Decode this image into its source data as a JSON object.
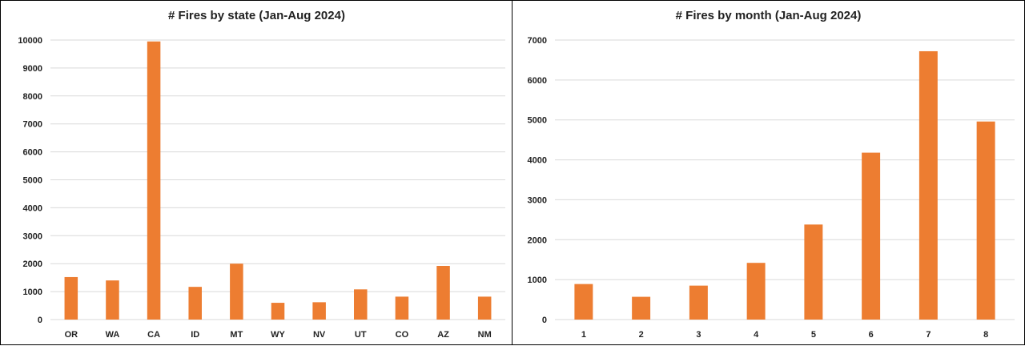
{
  "bar_color": "#ED7D31",
  "grid_color": "#D9D9D9",
  "chart_data": [
    {
      "type": "bar",
      "title": "# Fires by state (Jan-Aug 2024)",
      "categories": [
        "OR",
        "WA",
        "CA",
        "ID",
        "MT",
        "WY",
        "NV",
        "UT",
        "CO",
        "AZ",
        "NM"
      ],
      "values": [
        1520,
        1400,
        9950,
        1170,
        2000,
        600,
        620,
        1080,
        820,
        1920,
        820
      ],
      "ylim": [
        0,
        10000
      ],
      "yticks": [
        0,
        1000,
        2000,
        3000,
        4000,
        5000,
        6000,
        7000,
        8000,
        9000,
        10000
      ],
      "grid": true,
      "xlabel": "",
      "ylabel": ""
    },
    {
      "type": "bar",
      "title": "# Fires by month (Jan-Aug 2024)",
      "categories": [
        "1",
        "2",
        "3",
        "4",
        "5",
        "6",
        "7",
        "8"
      ],
      "values": [
        890,
        570,
        850,
        1420,
        2380,
        4180,
        6720,
        4960
      ],
      "ylim": [
        0,
        7000
      ],
      "yticks": [
        0,
        1000,
        2000,
        3000,
        4000,
        5000,
        6000,
        7000
      ],
      "grid": true,
      "xlabel": "",
      "ylabel": ""
    }
  ]
}
